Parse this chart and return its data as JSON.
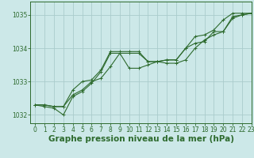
{
  "background_color": "#cce8e8",
  "grid_color": "#aacccc",
  "line_color": "#2d6a2d",
  "xlabel": "Graphe pression niveau de la mer (hPa)",
  "xlabel_fontsize": 7.5,
  "ylim": [
    1031.75,
    1035.4
  ],
  "xlim": [
    -0.5,
    23
  ],
  "yticks": [
    1032,
    1033,
    1034,
    1035
  ],
  "xticks": [
    0,
    1,
    2,
    3,
    4,
    5,
    6,
    7,
    8,
    9,
    10,
    11,
    12,
    13,
    14,
    15,
    16,
    17,
    18,
    19,
    20,
    21,
    22,
    23
  ],
  "series": [
    [
      1032.3,
      1032.3,
      1032.25,
      1032.25,
      1032.6,
      1032.75,
      1033.0,
      1033.1,
      1033.45,
      1033.85,
      1033.85,
      1033.85,
      1033.6,
      1033.6,
      1033.65,
      1033.65,
      1034.0,
      1034.15,
      1034.2,
      1034.5,
      1034.5,
      1034.95,
      1035.0,
      1035.05
    ],
    [
      1032.3,
      1032.25,
      1032.2,
      1032.0,
      1032.55,
      1032.7,
      1032.95,
      1033.3,
      1033.85,
      1033.85,
      1033.4,
      1033.4,
      1033.5,
      1033.6,
      1033.55,
      1033.55,
      1033.65,
      1034.0,
      1034.25,
      1034.4,
      1034.5,
      1034.9,
      1035.0,
      1035.05
    ],
    [
      1032.3,
      1032.3,
      1032.25,
      1032.25,
      1032.75,
      1033.0,
      1033.05,
      1033.35,
      1033.9,
      1033.9,
      1033.9,
      1033.9,
      1033.6,
      1033.6,
      1033.65,
      1033.65,
      1034.0,
      1034.35,
      1034.4,
      1034.55,
      1034.85,
      1035.05,
      1035.05,
      1035.05
    ]
  ]
}
